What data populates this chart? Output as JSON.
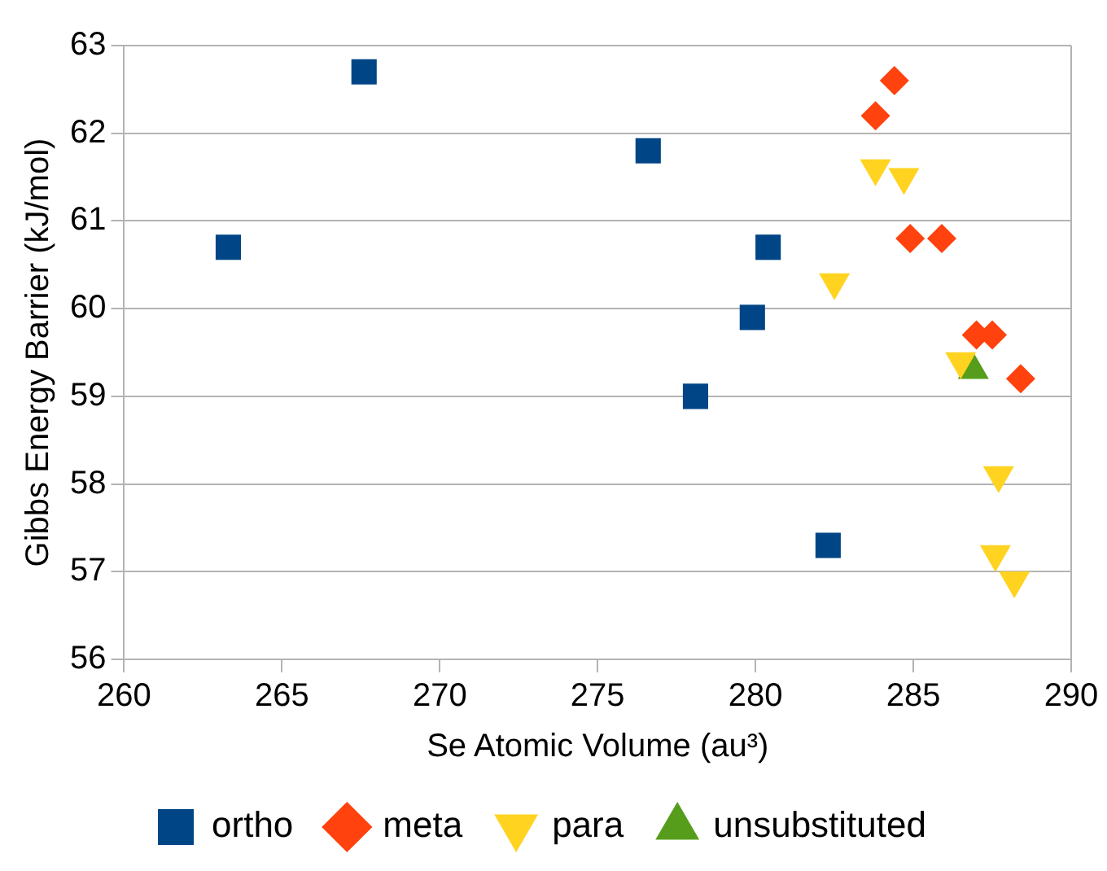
{
  "chart_data": {
    "type": "scatter",
    "xlabel": "Se Atomic Volume (au³)",
    "ylabel": "Gibbs Energy Barrier (kJ/mol)",
    "xlim": [
      260,
      290
    ],
    "xticks": [
      260,
      265,
      270,
      275,
      280,
      285,
      290
    ],
    "ylim": [
      56,
      63
    ],
    "yticks": [
      56,
      57,
      58,
      59,
      60,
      61,
      62,
      63
    ],
    "grid": "y",
    "legend": "bottom",
    "series": [
      {
        "name": "ortho",
        "color": "#004586",
        "marker": "square",
        "x": [
          263.3,
          267.6,
          276.6,
          278.1,
          279.9,
          280.4,
          282.3
        ],
        "values": [
          60.7,
          62.7,
          61.8,
          59.0,
          59.9,
          60.7,
          57.3
        ]
      },
      {
        "name": "meta",
        "color": "#ff420e",
        "marker": "diamond",
        "x": [
          284.4,
          283.8,
          284.9,
          285.9,
          287.0,
          287.5,
          288.4
        ],
        "values": [
          62.6,
          62.2,
          60.8,
          60.8,
          59.7,
          59.7,
          59.2
        ]
      },
      {
        "name": "para",
        "color": "#ffd320",
        "marker": "triangle_down",
        "x": [
          283.8,
          284.7,
          282.5,
          286.5,
          287.7,
          287.6,
          288.2
        ],
        "values": [
          61.6,
          61.5,
          60.3,
          59.4,
          58.1,
          57.2,
          56.9
        ]
      },
      {
        "name": "unsubstituted",
        "color": "#579d1c",
        "marker": "triangle",
        "x": [
          286.9
        ],
        "values": [
          59.3
        ]
      }
    ]
  }
}
